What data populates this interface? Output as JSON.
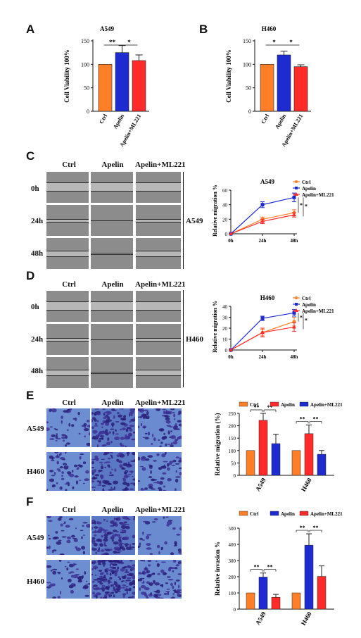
{
  "panels": {
    "A": {
      "letter": "A",
      "title": "A549",
      "ylabel": "Cell Viability 100%",
      "yticks": [
        "0",
        "50",
        "100",
        "150"
      ],
      "categories": [
        "Ctrl",
        "Apelin",
        "Apelin+ML221"
      ],
      "sig": [
        "**",
        "*"
      ],
      "colors": [
        "#ff7f27",
        "#1d2bd1",
        "#ff2a2a"
      ]
    },
    "B": {
      "letter": "B",
      "title": "H460",
      "ylabel": "Cell Viability 100%",
      "yticks": [
        "0",
        "50",
        "100",
        "150"
      ],
      "categories": [
        "Ctrl",
        "Apelin",
        "Apelin+ML221"
      ],
      "sig": [
        "*",
        "*"
      ],
      "colors": [
        "#ff7f27",
        "#1d2bd1",
        "#ff2a2a"
      ]
    },
    "C": {
      "letter": "C",
      "cols": [
        "Ctrl",
        "Apelin",
        "Apelin+ML221"
      ],
      "rows": [
        "0h",
        "24h",
        "48h"
      ],
      "side": "A549",
      "title": "A549",
      "ylabel": "Relative migration %",
      "yticks": [
        "0",
        "20",
        "40",
        "60"
      ],
      "xticks": [
        "0h",
        "24h",
        "48h"
      ],
      "legend": [
        "Ctrl",
        "Apelin",
        "Apelin+ML221"
      ],
      "sig": [
        "*",
        "*"
      ]
    },
    "D": {
      "letter": "D",
      "cols": [
        "Ctrl",
        "Apelin",
        "Apelin+ML221"
      ],
      "rows": [
        "0h",
        "24h",
        "48h"
      ],
      "side": "H460",
      "title": "H460",
      "ylabel": "Relative migration %",
      "yticks": [
        "0",
        "10",
        "20",
        "30",
        "40"
      ],
      "xticks": [
        "0h",
        "24h",
        "48h"
      ],
      "legend": [
        "Ctrl",
        "Apelin",
        "Apelin+ML221"
      ],
      "sig": [
        "*",
        "*"
      ]
    },
    "E": {
      "letter": "E",
      "cols": [
        "Ctrl",
        "Apelin",
        "Apelin+ML221"
      ],
      "rows": [
        "A549",
        "H460"
      ],
      "ylabel": "Relative migration (%)",
      "yticks": [
        "0",
        "50",
        "100",
        "150",
        "200",
        "250"
      ],
      "groups": [
        "A549",
        "H460"
      ],
      "legend": [
        "Ctrl",
        "Apelin",
        "Apelin+ML221"
      ],
      "sig": [
        "**",
        "**",
        "**",
        "**"
      ]
    },
    "F": {
      "letter": "F",
      "cols": [
        "Ctrl",
        "Apelin",
        "Apelin+ML221"
      ],
      "rows": [
        "A549",
        "H460"
      ],
      "ylabel": "Relative invasion %",
      "yticks": [
        "0",
        "100",
        "200",
        "300",
        "400",
        "500"
      ],
      "groups": [
        "A549",
        "H460"
      ],
      "legend": [
        "Ctrl",
        "Apelin",
        "Apelin+ML221"
      ],
      "sig": [
        "**",
        "**",
        "**",
        "**"
      ]
    }
  },
  "chart_data": [
    {
      "id": "A",
      "type": "bar",
      "title": "A549",
      "categories": [
        "Ctrl",
        "Apelin",
        "Apelin+ML221"
      ],
      "values": [
        100,
        125,
        108
      ],
      "errors": [
        0,
        15,
        12
      ],
      "ylim": [
        0,
        150
      ],
      "ylabel": "Cell Viability 100%"
    },
    {
      "id": "B",
      "type": "bar",
      "title": "H460",
      "categories": [
        "Ctrl",
        "Apelin",
        "Apelin+ML221"
      ],
      "values": [
        100,
        120,
        95
      ],
      "errors": [
        0,
        8,
        4
      ],
      "ylim": [
        0,
        150
      ],
      "ylabel": "Cell Viability 100%"
    },
    {
      "id": "C",
      "type": "line",
      "title": "A549",
      "x": [
        "0h",
        "24h",
        "48h"
      ],
      "ylim": [
        0,
        60
      ],
      "ylabel": "Relative migration %",
      "series": [
        {
          "name": "Ctrl",
          "values": [
            0,
            20,
            29
          ],
          "errors": [
            0,
            3,
            4
          ],
          "color": "#ff7f27"
        },
        {
          "name": "Apelin",
          "values": [
            0,
            40,
            50
          ],
          "errors": [
            0,
            4,
            6
          ],
          "color": "#1d2bd1"
        },
        {
          "name": "Apelin+ML221",
          "values": [
            0,
            17,
            26
          ],
          "errors": [
            0,
            3,
            3
          ],
          "color": "#ff2a2a"
        }
      ]
    },
    {
      "id": "D",
      "type": "line",
      "title": "H460",
      "x": [
        "0h",
        "24h",
        "48h"
      ],
      "ylim": [
        0,
        40
      ],
      "ylabel": "Relative migration %",
      "series": [
        {
          "name": "Ctrl",
          "values": [
            0,
            16,
            26
          ],
          "errors": [
            0,
            3,
            4
          ],
          "color": "#ff7f27"
        },
        {
          "name": "Apelin",
          "values": [
            0,
            29,
            34
          ],
          "errors": [
            0,
            2,
            3
          ],
          "color": "#1d2bd1"
        },
        {
          "name": "Apelin+ML221",
          "values": [
            0,
            16,
            21
          ],
          "errors": [
            0,
            4,
            4
          ],
          "color": "#ff2a2a"
        }
      ]
    },
    {
      "id": "E",
      "type": "bar",
      "categories": [
        "A549",
        "H460"
      ],
      "ylim": [
        0,
        250
      ],
      "ylabel": "Relative migration (%)",
      "series": [
        {
          "name": "Ctrl",
          "values": [
            100,
            100
          ],
          "errors": [
            0,
            0
          ],
          "color": "#ff7f27"
        },
        {
          "name": "Apelin",
          "values": [
            222,
            168
          ],
          "errors": [
            28,
            35
          ],
          "color": "#ff2a2a"
        },
        {
          "name": "Apelin+ML221",
          "values": [
            128,
            85
          ],
          "errors": [
            38,
            15
          ],
          "color": "#1d2bd1"
        }
      ]
    },
    {
      "id": "F",
      "type": "bar",
      "categories": [
        "A549",
        "H460"
      ],
      "ylim": [
        0,
        500
      ],
      "ylabel": "Relative invasion %",
      "series": [
        {
          "name": "Ctrl",
          "values": [
            100,
            100
          ],
          "errors": [
            0,
            0
          ],
          "color": "#ff7f27"
        },
        {
          "name": "Apelin",
          "values": [
            198,
            395
          ],
          "errors": [
            25,
            70
          ],
          "color": "#1d2bd1"
        },
        {
          "name": "Apelin+ML221",
          "values": [
            73,
            202
          ],
          "errors": [
            18,
            65
          ],
          "color": "#ff2a2a"
        }
      ]
    }
  ]
}
